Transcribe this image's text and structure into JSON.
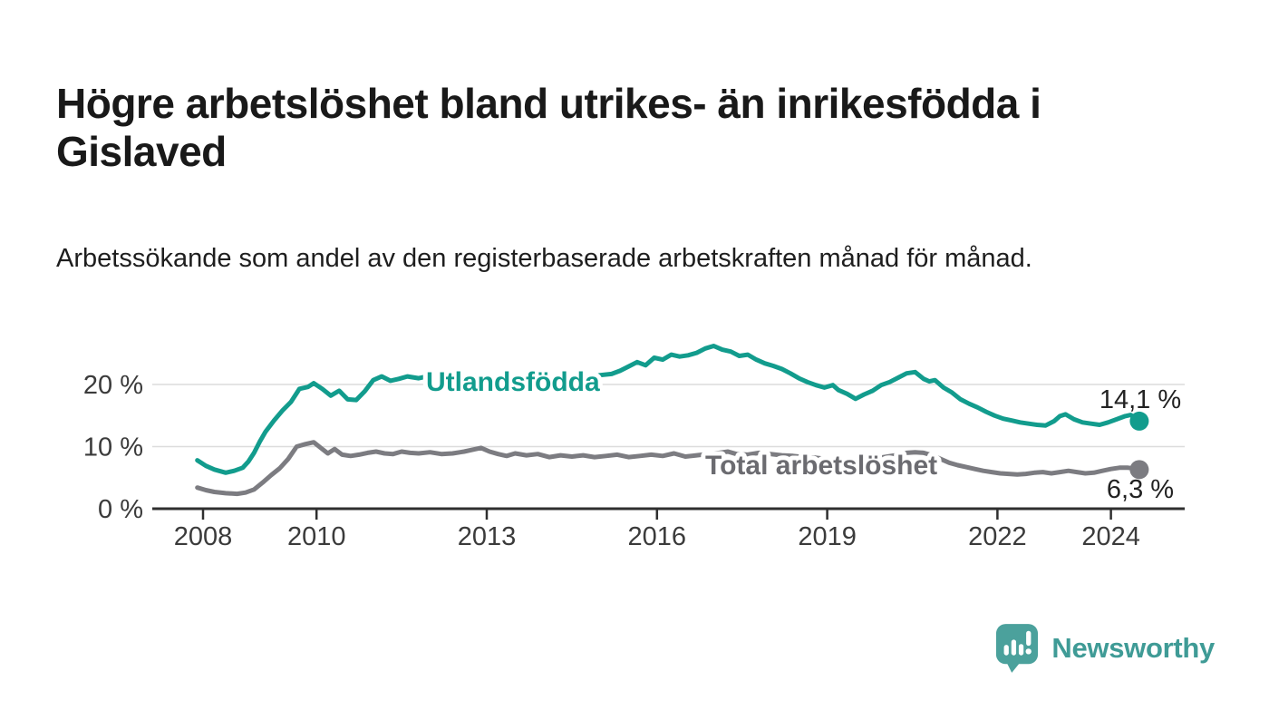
{
  "header": {
    "title": "Högre arbetslöshet bland utrikes- än inrikesfödda i Gislaved",
    "subtitle": "Arbetssökande som andel av den registerbaserade arbetskraften månad för månad."
  },
  "chart_data": {
    "type": "line",
    "title": "Högre arbetslöshet bland utrikes- än inrikesfödda i Gislaved",
    "subtitle": "Arbetssökande som andel av den registerbaserade arbetskraften månad för månad.",
    "unit": "%",
    "grid": "horizontal",
    "legend": "inline-labels",
    "colors": {
      "gridline": "#dcdcdc",
      "axis": "#2f2f2f",
      "tick_text": "#3b3b3b",
      "value_label_text": "#222222"
    },
    "x_axis": {
      "ticks": [
        {
          "year": 2008,
          "label": "2008"
        },
        {
          "year": 2010,
          "label": "2010"
        },
        {
          "year": 2013,
          "label": "2013"
        },
        {
          "year": 2016,
          "label": "2016"
        },
        {
          "year": 2019,
          "label": "2019"
        },
        {
          "year": 2022,
          "label": "2022"
        },
        {
          "year": 2024,
          "label": "2024"
        }
      ]
    },
    "y_axis": {
      "ticks": [
        {
          "value": 0,
          "label": "0 %"
        },
        {
          "value": 10,
          "label": "10 %"
        },
        {
          "value": 20,
          "label": "20 %"
        }
      ],
      "range": [
        0,
        28
      ]
    },
    "series": [
      {
        "name": "Utlandsfödda",
        "color": "#129c8d",
        "label_color": "#129c8d",
        "end_value": 14.1,
        "end_label": "14,1 %",
        "points": [
          [
            2007.9,
            7.8
          ],
          [
            2008.05,
            6.9
          ],
          [
            2008.2,
            6.3
          ],
          [
            2008.4,
            5.8
          ],
          [
            2008.55,
            6.1
          ],
          [
            2008.7,
            6.6
          ],
          [
            2008.8,
            7.6
          ],
          [
            2008.9,
            9.0
          ],
          [
            2009.0,
            10.8
          ],
          [
            2009.1,
            12.4
          ],
          [
            2009.25,
            14.2
          ],
          [
            2009.4,
            15.8
          ],
          [
            2009.55,
            17.2
          ],
          [
            2009.7,
            19.3
          ],
          [
            2009.85,
            19.6
          ],
          [
            2009.95,
            20.2
          ],
          [
            2010.1,
            19.3
          ],
          [
            2010.25,
            18.2
          ],
          [
            2010.4,
            19.0
          ],
          [
            2010.55,
            17.6
          ],
          [
            2010.7,
            17.5
          ],
          [
            2010.85,
            18.9
          ],
          [
            2011.0,
            20.7
          ],
          [
            2011.15,
            21.3
          ],
          [
            2011.3,
            20.6
          ],
          [
            2011.45,
            20.9
          ],
          [
            2011.6,
            21.3
          ],
          [
            2011.8,
            21.0
          ],
          [
            2012.0,
            21.4
          ],
          [
            2012.2,
            21.1
          ],
          [
            2012.4,
            21.5
          ],
          [
            2012.6,
            21.2
          ],
          [
            2012.8,
            21.4
          ],
          [
            2013.0,
            21.0
          ],
          [
            2013.2,
            21.3
          ],
          [
            2013.4,
            20.9
          ],
          [
            2013.6,
            21.1
          ],
          [
            2013.8,
            20.8
          ],
          [
            2014.0,
            21.0
          ],
          [
            2014.2,
            20.8
          ],
          [
            2014.4,
            21.1
          ],
          [
            2014.6,
            20.9
          ],
          [
            2014.8,
            21.2
          ],
          [
            2015.0,
            21.5
          ],
          [
            2015.2,
            21.7
          ],
          [
            2015.35,
            22.2
          ],
          [
            2015.5,
            22.9
          ],
          [
            2015.65,
            23.6
          ],
          [
            2015.8,
            23.1
          ],
          [
            2015.95,
            24.3
          ],
          [
            2016.1,
            24.0
          ],
          [
            2016.25,
            24.8
          ],
          [
            2016.4,
            24.5
          ],
          [
            2016.55,
            24.7
          ],
          [
            2016.7,
            25.1
          ],
          [
            2016.85,
            25.8
          ],
          [
            2017.0,
            26.2
          ],
          [
            2017.15,
            25.6
          ],
          [
            2017.3,
            25.3
          ],
          [
            2017.45,
            24.6
          ],
          [
            2017.6,
            24.8
          ],
          [
            2017.75,
            24.0
          ],
          [
            2017.9,
            23.4
          ],
          [
            2018.05,
            23.0
          ],
          [
            2018.2,
            22.5
          ],
          [
            2018.35,
            21.8
          ],
          [
            2018.5,
            21.0
          ],
          [
            2018.65,
            20.4
          ],
          [
            2018.8,
            19.9
          ],
          [
            2018.95,
            19.5
          ],
          [
            2019.1,
            19.9
          ],
          [
            2019.2,
            19.1
          ],
          [
            2019.35,
            18.5
          ],
          [
            2019.5,
            17.7
          ],
          [
            2019.65,
            18.4
          ],
          [
            2019.8,
            19.0
          ],
          [
            2019.95,
            19.9
          ],
          [
            2020.1,
            20.4
          ],
          [
            2020.25,
            21.1
          ],
          [
            2020.4,
            21.8
          ],
          [
            2020.55,
            22.0
          ],
          [
            2020.7,
            20.9
          ],
          [
            2020.8,
            20.5
          ],
          [
            2020.9,
            20.7
          ],
          [
            2021.05,
            19.5
          ],
          [
            2021.2,
            18.7
          ],
          [
            2021.35,
            17.6
          ],
          [
            2021.5,
            16.9
          ],
          [
            2021.65,
            16.3
          ],
          [
            2021.8,
            15.6
          ],
          [
            2021.95,
            15.0
          ],
          [
            2022.1,
            14.5
          ],
          [
            2022.25,
            14.2
          ],
          [
            2022.4,
            13.9
          ],
          [
            2022.55,
            13.7
          ],
          [
            2022.7,
            13.5
          ],
          [
            2022.85,
            13.4
          ],
          [
            2023.0,
            14.1
          ],
          [
            2023.1,
            14.9
          ],
          [
            2023.2,
            15.2
          ],
          [
            2023.35,
            14.4
          ],
          [
            2023.5,
            13.9
          ],
          [
            2023.65,
            13.7
          ],
          [
            2023.8,
            13.5
          ],
          [
            2023.95,
            13.9
          ],
          [
            2024.1,
            14.4
          ],
          [
            2024.25,
            14.9
          ],
          [
            2024.35,
            15.1
          ],
          [
            2024.5,
            14.1
          ]
        ]
      },
      {
        "name": "Total arbetslöshet",
        "color": "#7c7c81",
        "label_color": "#6b6b70",
        "end_value": 6.3,
        "end_label": "6,3 %",
        "points": [
          [
            2007.9,
            3.4
          ],
          [
            2008.05,
            3.0
          ],
          [
            2008.2,
            2.7
          ],
          [
            2008.4,
            2.5
          ],
          [
            2008.6,
            2.4
          ],
          [
            2008.75,
            2.6
          ],
          [
            2008.9,
            3.1
          ],
          [
            2009.05,
            4.2
          ],
          [
            2009.2,
            5.4
          ],
          [
            2009.35,
            6.5
          ],
          [
            2009.5,
            8.0
          ],
          [
            2009.65,
            10.0
          ],
          [
            2009.8,
            10.4
          ],
          [
            2009.95,
            10.7
          ],
          [
            2010.1,
            9.6
          ],
          [
            2010.2,
            8.9
          ],
          [
            2010.32,
            9.6
          ],
          [
            2010.45,
            8.7
          ],
          [
            2010.6,
            8.5
          ],
          [
            2010.75,
            8.7
          ],
          [
            2010.9,
            9.0
          ],
          [
            2011.05,
            9.2
          ],
          [
            2011.2,
            8.9
          ],
          [
            2011.35,
            8.8
          ],
          [
            2011.5,
            9.2
          ],
          [
            2011.65,
            9.0
          ],
          [
            2011.8,
            8.9
          ],
          [
            2012.0,
            9.1
          ],
          [
            2012.2,
            8.8
          ],
          [
            2012.4,
            8.9
          ],
          [
            2012.6,
            9.2
          ],
          [
            2012.75,
            9.5
          ],
          [
            2012.9,
            9.8
          ],
          [
            2013.05,
            9.2
          ],
          [
            2013.2,
            8.8
          ],
          [
            2013.35,
            8.5
          ],
          [
            2013.5,
            8.9
          ],
          [
            2013.7,
            8.6
          ],
          [
            2013.9,
            8.8
          ],
          [
            2014.1,
            8.3
          ],
          [
            2014.3,
            8.6
          ],
          [
            2014.5,
            8.4
          ],
          [
            2014.7,
            8.6
          ],
          [
            2014.9,
            8.3
          ],
          [
            2015.1,
            8.5
          ],
          [
            2015.3,
            8.7
          ],
          [
            2015.5,
            8.3
          ],
          [
            2015.7,
            8.5
          ],
          [
            2015.9,
            8.7
          ],
          [
            2016.1,
            8.5
          ],
          [
            2016.3,
            8.9
          ],
          [
            2016.5,
            8.4
          ],
          [
            2016.7,
            8.6
          ],
          [
            2016.9,
            8.8
          ],
          [
            2017.1,
            9.0
          ],
          [
            2017.25,
            9.2
          ],
          [
            2017.4,
            8.8
          ],
          [
            2017.6,
            8.7
          ],
          [
            2017.8,
            9.0
          ],
          [
            2018.0,
            8.8
          ],
          [
            2018.2,
            8.6
          ],
          [
            2018.4,
            8.5
          ],
          [
            2018.6,
            8.3
          ],
          [
            2018.8,
            8.2
          ],
          [
            2019.0,
            8.0
          ],
          [
            2019.2,
            7.8
          ],
          [
            2019.4,
            7.7
          ],
          [
            2019.6,
            7.8
          ],
          [
            2019.8,
            8.0
          ],
          [
            2020.0,
            8.3
          ],
          [
            2020.2,
            8.6
          ],
          [
            2020.4,
            9.0
          ],
          [
            2020.55,
            9.1
          ],
          [
            2020.7,
            9.0
          ],
          [
            2020.85,
            8.6
          ],
          [
            2021.0,
            8.0
          ],
          [
            2021.15,
            7.4
          ],
          [
            2021.3,
            7.0
          ],
          [
            2021.45,
            6.7
          ],
          [
            2021.6,
            6.4
          ],
          [
            2021.75,
            6.1
          ],
          [
            2021.9,
            5.9
          ],
          [
            2022.05,
            5.7
          ],
          [
            2022.2,
            5.6
          ],
          [
            2022.35,
            5.5
          ],
          [
            2022.5,
            5.6
          ],
          [
            2022.65,
            5.8
          ],
          [
            2022.8,
            5.9
          ],
          [
            2022.95,
            5.7
          ],
          [
            2023.1,
            5.9
          ],
          [
            2023.25,
            6.1
          ],
          [
            2023.4,
            5.9
          ],
          [
            2023.55,
            5.7
          ],
          [
            2023.7,
            5.8
          ],
          [
            2023.85,
            6.1
          ],
          [
            2024.0,
            6.4
          ],
          [
            2024.15,
            6.6
          ],
          [
            2024.3,
            6.6
          ],
          [
            2024.4,
            6.5
          ],
          [
            2024.5,
            6.3
          ]
        ]
      }
    ]
  },
  "footer": {
    "brand": "Newsworthy",
    "brand_color": "#3f9b96",
    "icon": "bar-chart-speech-bubble"
  }
}
